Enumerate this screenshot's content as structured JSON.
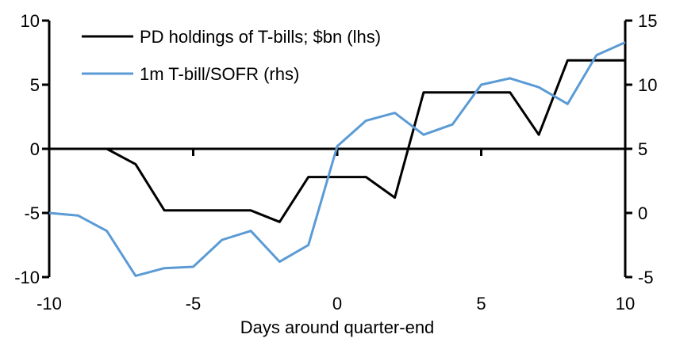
{
  "chart_data": {
    "type": "line",
    "title": "",
    "xlabel": "Days around quarter-end",
    "grid": false,
    "legend_position": "top-left",
    "x": [
      -10,
      -9,
      -8,
      -7,
      -6,
      -5,
      -4,
      -3,
      -2,
      -1,
      0,
      1,
      2,
      3,
      4,
      5,
      6,
      7,
      8,
      9,
      10
    ],
    "x_axis": {
      "min": -10,
      "max": 10,
      "ticks": [
        -10,
        -5,
        0,
        5,
        10
      ]
    },
    "left_axis": {
      "min": -10,
      "max": 10,
      "ticks": [
        10,
        5,
        0,
        -5,
        -10
      ]
    },
    "right_axis": {
      "min": -5,
      "max": 15,
      "ticks": [
        15,
        10,
        5,
        0,
        -5
      ]
    },
    "series": [
      {
        "name": "PD holdings of T-bills; $bn (lhs)",
        "axis": "left",
        "color": "#000000",
        "values": [
          0.0,
          0.0,
          0.0,
          -1.2,
          -4.8,
          -4.8,
          -4.8,
          -4.8,
          -5.7,
          -2.2,
          -2.2,
          -2.2,
          -3.8,
          4.4,
          4.4,
          4.4,
          4.4,
          1.1,
          6.9,
          6.9,
          6.9
        ]
      },
      {
        "name": "1m T-bill/SOFR (rhs)",
        "axis": "right",
        "color": "#5B9BD5",
        "values": [
          0.0,
          -0.2,
          -1.4,
          -4.9,
          -4.3,
          -4.2,
          -2.1,
          -1.4,
          -3.8,
          -2.5,
          5.2,
          7.2,
          7.8,
          6.1,
          6.9,
          10.0,
          10.5,
          9.8,
          8.5,
          12.3,
          13.3
        ]
      }
    ],
    "colors": {
      "axis": "#000000",
      "background": "#ffffff"
    }
  }
}
